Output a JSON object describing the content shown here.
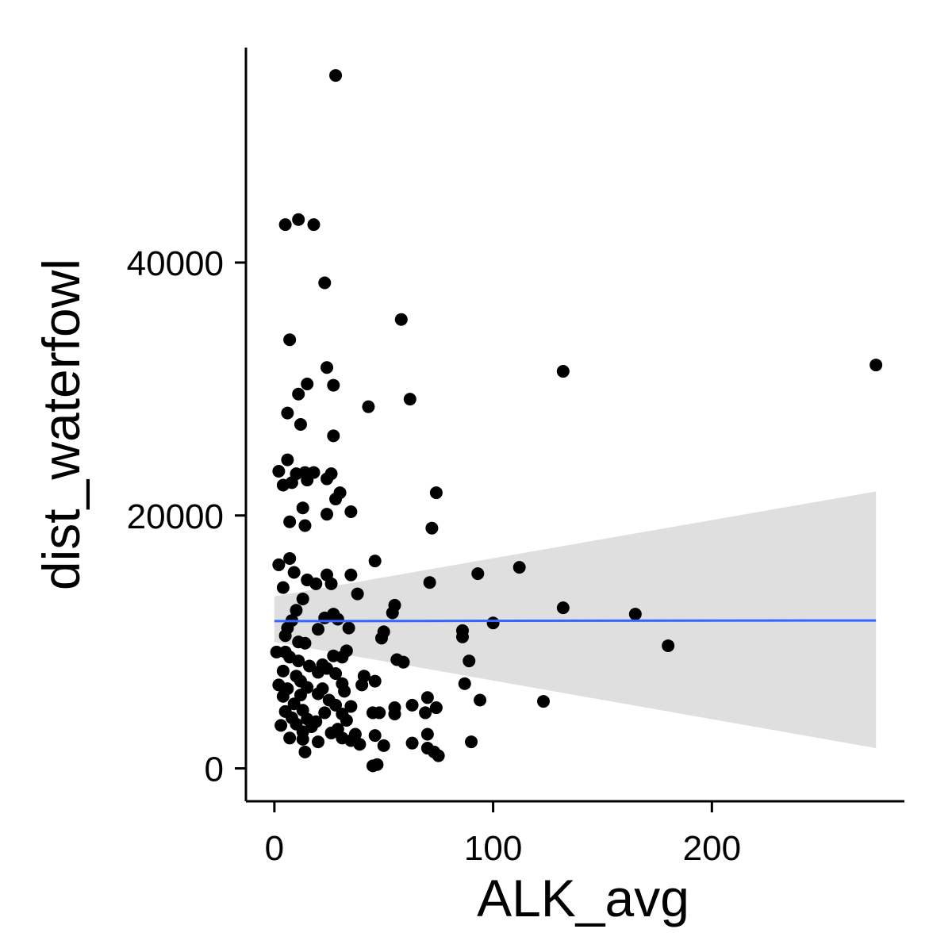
{
  "chart_data": {
    "type": "scatter",
    "title": "",
    "xlabel": "ALK_avg",
    "ylabel": "dist_waterfowl",
    "xlim": [
      -13,
      288
    ],
    "ylim": [
      -2600,
      57000
    ],
    "x_ticks": [
      0,
      100,
      200
    ],
    "x_tick_labels": [
      "0",
      "100",
      "200"
    ],
    "y_ticks": [
      0,
      20000,
      40000
    ],
    "y_tick_labels": [
      "0",
      "20000",
      "40000"
    ],
    "grid": false,
    "legend": "none",
    "point_color": "#000000",
    "fit_line_color": "#3366FF",
    "ribbon_color": "#D9D9D9",
    "fit": {
      "x": [
        0,
        275
      ],
      "y": [
        11650,
        11700
      ],
      "ci_lower": [
        10000,
        1600
      ],
      "ci_upper": [
        13600,
        21900
      ]
    },
    "points": [
      {
        "x": 28,
        "y": 54800
      },
      {
        "x": 5,
        "y": 43000
      },
      {
        "x": 11,
        "y": 43400
      },
      {
        "x": 18,
        "y": 43000
      },
      {
        "x": 23,
        "y": 38400
      },
      {
        "x": 58,
        "y": 35500
      },
      {
        "x": 7,
        "y": 33900
      },
      {
        "x": 24,
        "y": 31700
      },
      {
        "x": 132,
        "y": 31400
      },
      {
        "x": 275,
        "y": 31900
      },
      {
        "x": 15,
        "y": 30400
      },
      {
        "x": 27,
        "y": 30300
      },
      {
        "x": 11,
        "y": 29600
      },
      {
        "x": 62,
        "y": 29200
      },
      {
        "x": 43,
        "y": 28600
      },
      {
        "x": 6,
        "y": 28100
      },
      {
        "x": 12,
        "y": 27200
      },
      {
        "x": 27,
        "y": 26300
      },
      {
        "x": 2,
        "y": 23500
      },
      {
        "x": 6,
        "y": 24400
      },
      {
        "x": 10,
        "y": 23300
      },
      {
        "x": 14,
        "y": 23400
      },
      {
        "x": 18,
        "y": 23400
      },
      {
        "x": 26,
        "y": 23300
      },
      {
        "x": 4,
        "y": 22400
      },
      {
        "x": 8,
        "y": 22600
      },
      {
        "x": 15,
        "y": 22800
      },
      {
        "x": 24,
        "y": 22900
      },
      {
        "x": 30,
        "y": 21800
      },
      {
        "x": 28,
        "y": 21300
      },
      {
        "x": 74,
        "y": 21800
      },
      {
        "x": 13,
        "y": 20600
      },
      {
        "x": 24,
        "y": 20100
      },
      {
        "x": 35,
        "y": 20300
      },
      {
        "x": 7,
        "y": 19500
      },
      {
        "x": 14,
        "y": 19200
      },
      {
        "x": 72,
        "y": 19000
      },
      {
        "x": 7,
        "y": 16600
      },
      {
        "x": 2,
        "y": 16100
      },
      {
        "x": 46,
        "y": 16400
      },
      {
        "x": 112,
        "y": 15900
      },
      {
        "x": 9,
        "y": 15500
      },
      {
        "x": 24,
        "y": 15300
      },
      {
        "x": 35,
        "y": 15300
      },
      {
        "x": 93,
        "y": 15400
      },
      {
        "x": 15,
        "y": 14900
      },
      {
        "x": 19,
        "y": 14600
      },
      {
        "x": 26,
        "y": 14600
      },
      {
        "x": 71,
        "y": 14700
      },
      {
        "x": 4,
        "y": 14300
      },
      {
        "x": 38,
        "y": 13800
      },
      {
        "x": 13,
        "y": 13400
      },
      {
        "x": 55,
        "y": 12900
      },
      {
        "x": 132,
        "y": 12700
      },
      {
        "x": 10,
        "y": 12500
      },
      {
        "x": 27,
        "y": 12200
      },
      {
        "x": 54,
        "y": 12300
      },
      {
        "x": 165,
        "y": 12200
      },
      {
        "x": 23,
        "y": 11900
      },
      {
        "x": 8,
        "y": 11700
      },
      {
        "x": 29,
        "y": 11800
      },
      {
        "x": 100,
        "y": 11500
      },
      {
        "x": 6,
        "y": 11100
      },
      {
        "x": 34,
        "y": 11100
      },
      {
        "x": 20,
        "y": 11000
      },
      {
        "x": 50,
        "y": 10800
      },
      {
        "x": 86,
        "y": 10900
      },
      {
        "x": 5,
        "y": 10500
      },
      {
        "x": 49,
        "y": 10300
      },
      {
        "x": 86,
        "y": 10400
      },
      {
        "x": 11,
        "y": 10000
      },
      {
        "x": 14,
        "y": 9900
      },
      {
        "x": 180,
        "y": 9700
      },
      {
        "x": 1,
        "y": 9200
      },
      {
        "x": 5,
        "y": 9200
      },
      {
        "x": 33,
        "y": 9300
      },
      {
        "x": 7,
        "y": 8800
      },
      {
        "x": 27,
        "y": 8900
      },
      {
        "x": 31,
        "y": 8800
      },
      {
        "x": 11,
        "y": 8500
      },
      {
        "x": 56,
        "y": 8600
      },
      {
        "x": 59,
        "y": 8400
      },
      {
        "x": 89,
        "y": 8500
      },
      {
        "x": 16,
        "y": 8100
      },
      {
        "x": 22,
        "y": 8200
      },
      {
        "x": 24,
        "y": 7900
      },
      {
        "x": 4,
        "y": 7700
      },
      {
        "x": 10,
        "y": 7300
      },
      {
        "x": 20,
        "y": 7600
      },
      {
        "x": 28,
        "y": 7500
      },
      {
        "x": 41,
        "y": 7300
      },
      {
        "x": 2,
        "y": 6600
      },
      {
        "x": 12,
        "y": 6900
      },
      {
        "x": 31,
        "y": 6700
      },
      {
        "x": 40,
        "y": 6600
      },
      {
        "x": 46,
        "y": 6900
      },
      {
        "x": 87,
        "y": 6700
      },
      {
        "x": 6,
        "y": 6300
      },
      {
        "x": 15,
        "y": 6400
      },
      {
        "x": 22,
        "y": 6300
      },
      {
        "x": 32,
        "y": 6100
      },
      {
        "x": 4,
        "y": 5700
      },
      {
        "x": 12,
        "y": 5800
      },
      {
        "x": 20,
        "y": 5900
      },
      {
        "x": 25,
        "y": 5400
      },
      {
        "x": 70,
        "y": 5600
      },
      {
        "x": 94,
        "y": 5400
      },
      {
        "x": 123,
        "y": 5300
      },
      {
        "x": 9,
        "y": 5100
      },
      {
        "x": 28,
        "y": 5000
      },
      {
        "x": 35,
        "y": 4900
      },
      {
        "x": 55,
        "y": 4800
      },
      {
        "x": 63,
        "y": 5000
      },
      {
        "x": 74,
        "y": 4800
      },
      {
        "x": 5,
        "y": 4500
      },
      {
        "x": 13,
        "y": 4600
      },
      {
        "x": 23,
        "y": 4400
      },
      {
        "x": 31,
        "y": 4300
      },
      {
        "x": 45,
        "y": 4400
      },
      {
        "x": 48,
        "y": 4400
      },
      {
        "x": 55,
        "y": 4300
      },
      {
        "x": 69,
        "y": 4400
      },
      {
        "x": 8,
        "y": 4000
      },
      {
        "x": 15,
        "y": 3900
      },
      {
        "x": 19,
        "y": 3700
      },
      {
        "x": 33,
        "y": 3800
      },
      {
        "x": 3,
        "y": 3400
      },
      {
        "x": 10,
        "y": 3500
      },
      {
        "x": 17,
        "y": 3300
      },
      {
        "x": 29,
        "y": 3100
      },
      {
        "x": 13,
        "y": 2900
      },
      {
        "x": 26,
        "y": 2800
      },
      {
        "x": 37,
        "y": 2700
      },
      {
        "x": 46,
        "y": 2600
      },
      {
        "x": 70,
        "y": 2700
      },
      {
        "x": 7,
        "y": 2400
      },
      {
        "x": 13,
        "y": 2300
      },
      {
        "x": 20,
        "y": 2100
      },
      {
        "x": 31,
        "y": 2400
      },
      {
        "x": 35,
        "y": 2200
      },
      {
        "x": 39,
        "y": 1900
      },
      {
        "x": 50,
        "y": 1800
      },
      {
        "x": 63,
        "y": 2000
      },
      {
        "x": 90,
        "y": 2100
      },
      {
        "x": 14,
        "y": 1300
      },
      {
        "x": 70,
        "y": 1600
      },
      {
        "x": 73,
        "y": 1300
      },
      {
        "x": 75,
        "y": 1000
      },
      {
        "x": 45,
        "y": 200
      },
      {
        "x": 47,
        "y": 300
      }
    ]
  }
}
